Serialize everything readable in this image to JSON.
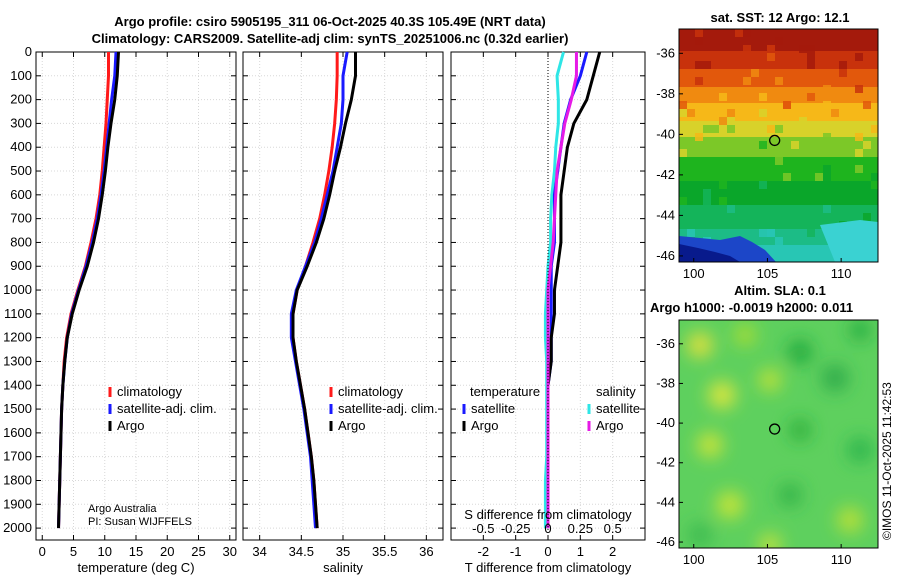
{
  "header": {
    "title_line1": "Argo profile: csiro 5905195_311 06-Oct-2025 40.3S 105.49E (NRT data)",
    "title_line2": "Climatology: CARS2009. Satellite-adj clim: synTS_20251006.nc (0.32d earlier)"
  },
  "credits": {
    "line1": "Argo Australia",
    "line2": "PI: Susan WIJFFELS"
  },
  "stamp": "©IMOS 11-Oct-2025 11:42:53",
  "colors": {
    "climatology": "#ff1a1a",
    "satellite": "#1a1aff",
    "argo": "#000000",
    "sal_sat": "#2ee6e6",
    "sal_argo": "#e61ae6"
  },
  "chart_data": [
    {
      "type": "line",
      "panel": "temperature",
      "xlabel": "temperature (deg C)",
      "xlim": [
        -1,
        31
      ],
      "xticks": [
        0,
        5,
        10,
        15,
        20,
        25,
        30
      ],
      "ylim": [
        0,
        2050
      ],
      "yticks": [
        0,
        100,
        200,
        300,
        400,
        500,
        600,
        700,
        800,
        900,
        1000,
        1100,
        1200,
        1300,
        1400,
        1500,
        1600,
        1700,
        1800,
        1900,
        2000
      ],
      "legend": [
        "climatology",
        "satellite-adj. clim.",
        "Argo"
      ],
      "depth": [
        0,
        100,
        200,
        300,
        400,
        500,
        600,
        700,
        800,
        900,
        1000,
        1100,
        1200,
        1300,
        1400,
        1500,
        1600,
        1700,
        1800,
        1900,
        2000
      ],
      "series": [
        {
          "name": "climatology",
          "values": [
            10.6,
            10.6,
            10.4,
            10.2,
            9.9,
            9.6,
            9.2,
            8.6,
            7.8,
            6.9,
            5.7,
            4.6,
            3.9,
            3.5,
            3.3,
            3.1,
            3.0,
            2.9,
            2.8,
            2.7,
            2.6
          ]
        },
        {
          "name": "satellite-adj. clim.",
          "values": [
            11.8,
            11.6,
            11.1,
            10.7,
            10.3,
            9.9,
            9.4,
            8.8,
            8.0,
            7.0,
            5.8,
            4.7,
            4.0,
            3.6,
            3.3,
            3.1,
            3.0,
            2.9,
            2.8,
            2.7,
            2.6
          ]
        },
        {
          "name": "Argo",
          "values": [
            12.2,
            12.0,
            11.6,
            11.0,
            10.5,
            10.1,
            9.6,
            9.0,
            8.2,
            7.2,
            5.9,
            4.8,
            4.0,
            3.6,
            3.3,
            3.1,
            3.0,
            2.9,
            2.8,
            2.7,
            2.6
          ]
        }
      ]
    },
    {
      "type": "line",
      "panel": "salinity",
      "xlabel": "salinity",
      "xlim": [
        33.8,
        36.2
      ],
      "xticks": [
        34,
        34.5,
        35,
        35.5,
        36
      ],
      "ylim": [
        0,
        2050
      ],
      "legend": [
        "climatology",
        "satellite-adj. clim.",
        "Argo"
      ],
      "depth": [
        0,
        100,
        200,
        300,
        400,
        500,
        600,
        700,
        800,
        900,
        1000,
        1100,
        1200,
        1300,
        1400,
        1500,
        1600,
        1700,
        1800,
        1900,
        2000
      ],
      "series": [
        {
          "name": "climatology",
          "values": [
            34.93,
            34.93,
            34.92,
            34.9,
            34.87,
            34.83,
            34.78,
            34.72,
            34.64,
            34.55,
            34.45,
            34.4,
            34.4,
            34.44,
            34.49,
            34.54,
            34.58,
            34.62,
            34.65,
            34.67,
            34.69
          ]
        },
        {
          "name": "satellite-adj. clim.",
          "values": [
            35.05,
            35.0,
            35.0,
            34.98,
            34.93,
            34.88,
            34.81,
            34.74,
            34.66,
            34.55,
            34.44,
            34.38,
            34.38,
            34.43,
            34.48,
            34.53,
            34.57,
            34.61,
            34.63,
            34.65,
            34.67
          ]
        },
        {
          "name": "Argo",
          "values": [
            35.15,
            35.15,
            35.1,
            35.03,
            34.97,
            34.9,
            34.84,
            34.77,
            34.68,
            34.57,
            34.45,
            34.4,
            34.4,
            34.44,
            34.49,
            34.54,
            34.58,
            34.62,
            34.65,
            34.67,
            34.69
          ]
        }
      ]
    },
    {
      "type": "line",
      "panel": "difference",
      "xlabel": "T difference from climatology",
      "xlabel_top": "S difference from climatology",
      "xlim": [
        -3,
        3
      ],
      "xticks": [
        -2,
        -1,
        0,
        1,
        2
      ],
      "xticks_top": [
        "-0.5",
        "-0.25",
        "0",
        "0.25",
        "0.5"
      ],
      "ylim": [
        0,
        2050
      ],
      "legend_temperature": {
        "title": "temperature",
        "entries": [
          "satellite",
          "Argo"
        ]
      },
      "legend_salinity": {
        "title": "salinity",
        "entries": [
          "satellite",
          "Argo"
        ]
      },
      "depth": [
        0,
        100,
        200,
        300,
        400,
        500,
        600,
        700,
        800,
        900,
        1000,
        1100,
        1200,
        1300,
        1400,
        1500,
        1600,
        1700,
        1800,
        1900,
        2000
      ],
      "series": [
        {
          "name": "T satellite",
          "values": [
            1.2,
            1.0,
            0.7,
            0.5,
            0.4,
            0.3,
            0.2,
            0.2,
            0.2,
            0.1,
            0.1,
            0.1,
            0.1,
            0.1,
            0.0,
            0.0,
            0.0,
            0.0,
            0.0,
            0.0,
            0.0
          ]
        },
        {
          "name": "T Argo",
          "values": [
            1.6,
            1.4,
            1.2,
            0.8,
            0.6,
            0.5,
            0.4,
            0.4,
            0.4,
            0.3,
            0.2,
            0.2,
            0.1,
            0.1,
            0.0,
            0.0,
            0.0,
            0.0,
            0.0,
            0.0,
            0.0
          ]
        },
        {
          "name": "S satellite",
          "values": [
            0.12,
            0.07,
            0.08,
            0.08,
            0.06,
            0.05,
            0.03,
            0.02,
            0.02,
            0.0,
            -0.01,
            -0.02,
            -0.02,
            -0.01,
            -0.01,
            -0.01,
            -0.01,
            -0.01,
            -0.02,
            -0.02,
            -0.02
          ]
        },
        {
          "name": "S Argo",
          "values": [
            0.22,
            0.22,
            0.18,
            0.13,
            0.1,
            0.07,
            0.06,
            0.05,
            0.04,
            0.02,
            0.0,
            0.0,
            0.0,
            0.0,
            0.0,
            0.0,
            0.0,
            0.0,
            0.0,
            0.0,
            0.0
          ]
        }
      ]
    },
    {
      "type": "heatmap",
      "panel": "sst_map",
      "title": "sat. SST: 12 Argo: 12.1",
      "xlim": [
        99,
        112.5
      ],
      "xticks": [
        100,
        105,
        110
      ],
      "ylim": [
        -46.3,
        -34.8
      ],
      "yticks": [
        -46,
        -44,
        -42,
        -40,
        -38,
        -36
      ],
      "float_position": {
        "lon": 105.49,
        "lat": -40.3
      }
    },
    {
      "type": "heatmap",
      "panel": "sla_map",
      "title_line1": "Altim. SLA: 0.1",
      "title_line2": "Argo h1000: -0.0019 h2000: 0.011",
      "xlim": [
        99,
        112.5
      ],
      "xticks": [
        100,
        105,
        110
      ],
      "ylim": [
        -46.3,
        -34.8
      ],
      "yticks": [
        -46,
        -44,
        -42,
        -40,
        -38,
        -36
      ],
      "float_position": {
        "lon": 105.49,
        "lat": -40.3
      }
    }
  ]
}
